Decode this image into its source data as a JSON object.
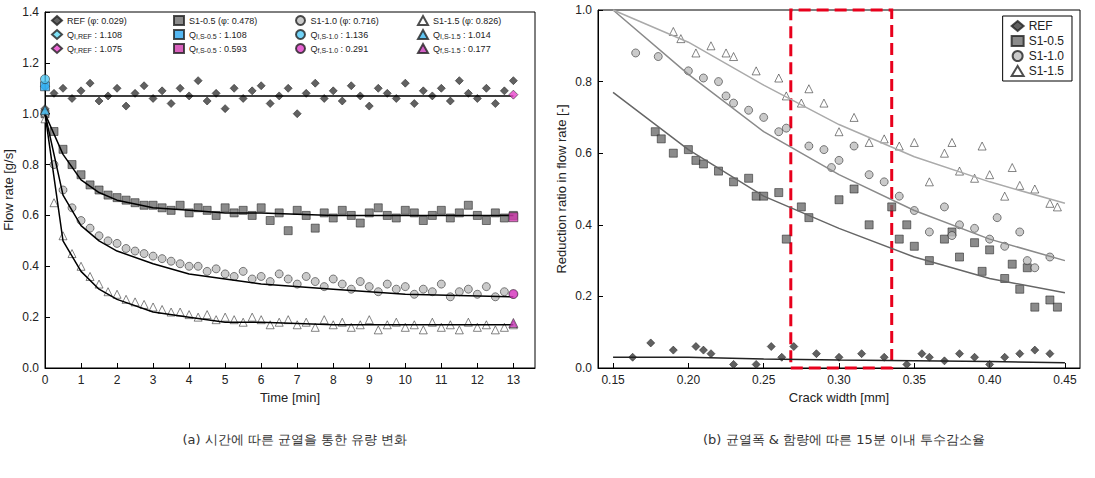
{
  "chart_data": [
    {
      "type": "scatter",
      "caption": "(a) 시간에 따른 균열을 통한 유량 변화",
      "x_label": "Time [min]",
      "y_label": "Flow rate [g/s]",
      "xlim": [
        0,
        13.6
      ],
      "xticks": [
        0,
        1,
        2,
        3,
        4,
        5,
        6,
        7,
        8,
        9,
        10,
        11,
        12,
        13
      ],
      "ylim": [
        0,
        1.4
      ],
      "yticks": [
        {
          "value": 0,
          "label": "0.0"
        },
        0.2,
        0.4,
        0.6,
        0.8,
        {
          "value": 1,
          "label": "1.0"
        },
        1.2,
        1.4
      ],
      "grid": false,
      "legend": "top",
      "x": [
        0,
        0.25,
        0.5,
        0.75,
        1,
        1.25,
        1.5,
        1.75,
        2,
        2.25,
        2.5,
        2.75,
        3,
        3.25,
        3.5,
        3.75,
        4,
        4.25,
        4.5,
        4.75,
        5,
        5.25,
        5.5,
        5.75,
        6,
        6.25,
        6.5,
        6.75,
        7,
        7.25,
        7.5,
        7.75,
        8,
        8.25,
        8.5,
        8.75,
        9,
        9.25,
        9.5,
        9.75,
        10,
        10.25,
        10.5,
        10.75,
        11,
        11.25,
        11.5,
        11.75,
        12,
        12.25,
        12.5,
        12.75,
        13
      ],
      "series": [
        {
          "name": "REF (φ: 0.029)",
          "color": "#3a3a3a",
          "marker": "diamond",
          "values": [
            1.02,
            1.08,
            1.1,
            1.06,
            1.09,
            1.12,
            1.05,
            1.07,
            1.1,
            1.03,
            1.08,
            1.11,
            1.06,
            1.09,
            1.04,
            1.1,
            1.07,
            1.13,
            1.05,
            1.08,
            1.02,
            1.1,
            1.06,
            1.09,
            1.11,
            1.04,
            1.07,
            1.1,
            1.0,
            1.08,
            1.12,
            1.06,
            1.09,
            1.05,
            1.11,
            1.07,
            1.03,
            1.1,
            1.08,
            1.06,
            1.12,
            1.04,
            1.09,
            1.07,
            1.1,
            1.05,
            1.13,
            1.08,
            1.06,
            1.1,
            1.04,
            1.09,
            1.13
          ]
        },
        {
          "name": "S1-0.5 (φ: 0.478)",
          "color": "#6e6e6e",
          "marker": "square",
          "values": [
            1.0,
            0.93,
            0.86,
            0.8,
            0.76,
            0.72,
            0.7,
            0.68,
            0.67,
            0.66,
            0.65,
            0.64,
            0.64,
            0.63,
            0.62,
            0.64,
            0.61,
            0.63,
            0.62,
            0.6,
            0.63,
            0.61,
            0.62,
            0.6,
            0.63,
            0.58,
            0.61,
            0.54,
            0.62,
            0.6,
            0.55,
            0.61,
            0.59,
            0.62,
            0.6,
            0.57,
            0.61,
            0.63,
            0.6,
            0.59,
            0.62,
            0.61,
            0.58,
            0.6,
            0.62,
            0.59,
            0.61,
            0.64,
            0.6,
            0.58,
            0.61,
            0.59,
            0.6
          ]
        },
        {
          "name": "S1-1.0 (φ: 0.716)",
          "color": "#bdbdbd",
          "marker": "circle",
          "values": [
            1.0,
            0.8,
            0.7,
            0.63,
            0.58,
            0.55,
            0.52,
            0.5,
            0.49,
            0.47,
            0.46,
            0.45,
            0.44,
            0.43,
            0.42,
            0.41,
            0.4,
            0.4,
            0.38,
            0.39,
            0.37,
            0.36,
            0.38,
            0.35,
            0.36,
            0.34,
            0.37,
            0.35,
            0.33,
            0.36,
            0.34,
            0.32,
            0.35,
            0.33,
            0.31,
            0.34,
            0.32,
            0.3,
            0.33,
            0.31,
            0.32,
            0.29,
            0.31,
            0.3,
            0.33,
            0.28,
            0.3,
            0.31,
            0.29,
            0.32,
            0.28,
            0.3,
            0.29
          ]
        },
        {
          "name": "S1-1.5 (φ: 0.826)",
          "color": "#ffffff",
          "marker": "triangle",
          "values": [
            0.98,
            0.65,
            0.52,
            0.45,
            0.4,
            0.36,
            0.33,
            0.3,
            0.29,
            0.27,
            0.26,
            0.25,
            0.24,
            0.23,
            0.22,
            0.22,
            0.21,
            0.2,
            0.21,
            0.19,
            0.2,
            0.19,
            0.18,
            0.2,
            0.19,
            0.17,
            0.18,
            0.19,
            0.17,
            0.18,
            0.16,
            0.19,
            0.17,
            0.18,
            0.16,
            0.17,
            0.19,
            0.15,
            0.17,
            0.18,
            0.16,
            0.17,
            0.15,
            0.18,
            0.16,
            0.17,
            0.15,
            0.18,
            0.16,
            0.17,
            0.15,
            0.16,
            0.17
          ]
        },
        {
          "name": "QI,REF : 1.108",
          "color": "#5fd8f2",
          "marker": "diamond",
          "x": [
            0
          ],
          "values": [
            1.108
          ]
        },
        {
          "name": "QI,S-0.5 : 1.108",
          "color": "#2aa6f0",
          "marker": "square",
          "x": [
            0
          ],
          "values": [
            1.108
          ]
        },
        {
          "name": "QI,S-1.0 : 1.136",
          "color": "#4fc8f5",
          "marker": "circle",
          "x": [
            0
          ],
          "values": [
            1.136
          ]
        },
        {
          "name": "QI,S-1.5 : 1.014",
          "color": "#3bb8f0",
          "marker": "triangle",
          "x": [
            0
          ],
          "values": [
            1.014
          ]
        },
        {
          "name": "Qf,REF : 1.075",
          "color": "#e845cc",
          "marker": "diamond",
          "x": [
            13
          ],
          "values": [
            1.075
          ]
        },
        {
          "name": "Qf,S-0.5 : 0.593",
          "color": "#d03aac",
          "marker": "square",
          "x": [
            13
          ],
          "values": [
            0.593
          ]
        },
        {
          "name": "Qf,S-1.0 : 0.291",
          "color": "#e03cc8",
          "marker": "circle",
          "x": [
            13
          ],
          "values": [
            0.291
          ]
        },
        {
          "name": "Qf,S-1.5 : 0.177",
          "color": "#c838b8",
          "marker": "triangle",
          "x": [
            13
          ],
          "values": [
            0.177
          ]
        },
        {
          "type": "line",
          "color": "#000000",
          "x": [
            0,
            0.5,
            1,
            1.5,
            2,
            3,
            4,
            5,
            6,
            8,
            10,
            13
          ],
          "values": [
            1.07,
            1.07,
            1.07,
            1.07,
            1.07,
            1.07,
            1.07,
            1.07,
            1.07,
            1.07,
            1.07,
            1.07
          ]
        },
        {
          "type": "line",
          "color": "#000000",
          "x": [
            0,
            0.5,
            1,
            1.5,
            2,
            3,
            4,
            5,
            6,
            8,
            10,
            13
          ],
          "values": [
            1.0,
            0.84,
            0.74,
            0.69,
            0.66,
            0.63,
            0.62,
            0.61,
            0.61,
            0.6,
            0.6,
            0.6
          ]
        },
        {
          "type": "line",
          "color": "#000000",
          "x": [
            0,
            0.5,
            1,
            1.5,
            2,
            3,
            4,
            5,
            6,
            8,
            10,
            13
          ],
          "values": [
            1.0,
            0.68,
            0.56,
            0.5,
            0.46,
            0.41,
            0.37,
            0.35,
            0.33,
            0.31,
            0.29,
            0.28
          ]
        },
        {
          "type": "line",
          "color": "#000000",
          "x": [
            0,
            0.5,
            1,
            1.5,
            2,
            3,
            4,
            5,
            6,
            8,
            10,
            13
          ],
          "values": [
            1.0,
            0.5,
            0.38,
            0.31,
            0.27,
            0.22,
            0.2,
            0.18,
            0.18,
            0.17,
            0.17,
            0.17
          ]
        }
      ]
    },
    {
      "type": "scatter",
      "caption": "(b) 균열폭 & 함량에 따른 15분 이내 투수감소율",
      "x_label": "Crack width [mm]",
      "y_label": "Reduction ratio in flow rate [-]",
      "xlim": [
        0.14,
        0.46
      ],
      "xticks": [
        0.15,
        {
          "value": 0.2,
          "label": "0.20"
        },
        0.25,
        {
          "value": 0.3,
          "label": "0.30"
        },
        0.35,
        {
          "value": 0.4,
          "label": "0.40"
        },
        0.45
      ],
      "ylim": [
        0,
        1
      ],
      "yticks": [
        {
          "value": 0,
          "label": "0.0"
        },
        0.2,
        0.4,
        0.6,
        0.8,
        {
          "value": 1,
          "label": "1.0"
        }
      ],
      "grid": false,
      "legend": "upper right",
      "highlight_range": [
        0.268,
        0.335
      ],
      "series": [
        {
          "name": "REF",
          "color": "#3a3a3a",
          "marker": "diamond",
          "x": [
            0.163,
            0.175,
            0.19,
            0.205,
            0.21,
            0.215,
            0.23,
            0.245,
            0.255,
            0.262,
            0.27,
            0.285,
            0.3,
            0.315,
            0.33,
            0.345,
            0.355,
            0.36,
            0.37,
            0.38,
            0.39,
            0.4,
            0.41,
            0.42,
            0.43,
            0.44
          ],
          "values": [
            0.03,
            0.07,
            0.05,
            0.06,
            0.05,
            0.04,
            0.01,
            0.01,
            0.06,
            0.03,
            0.06,
            0.04,
            0.03,
            0.04,
            0.03,
            0.01,
            0.04,
            0.03,
            0.02,
            0.04,
            0.03,
            0.01,
            0.03,
            0.04,
            0.05,
            0.04
          ]
        },
        {
          "name": "S1-0.5",
          "color": "#6e6e6e",
          "marker": "square",
          "x": [
            0.178,
            0.182,
            0.19,
            0.2,
            0.205,
            0.21,
            0.22,
            0.23,
            0.24,
            0.245,
            0.25,
            0.26,
            0.265,
            0.275,
            0.28,
            0.3,
            0.31,
            0.32,
            0.335,
            0.34,
            0.345,
            0.35,
            0.36,
            0.37,
            0.375,
            0.38,
            0.39,
            0.395,
            0.4,
            0.41,
            0.415,
            0.42,
            0.425,
            0.43,
            0.44,
            0.445
          ],
          "values": [
            0.66,
            0.64,
            0.6,
            0.61,
            0.58,
            0.57,
            0.55,
            0.52,
            0.53,
            0.48,
            0.48,
            0.49,
            0.36,
            0.45,
            0.42,
            0.47,
            0.5,
            0.4,
            0.45,
            0.36,
            0.4,
            0.34,
            0.3,
            0.36,
            0.38,
            0.31,
            0.35,
            0.27,
            0.33,
            0.25,
            0.29,
            0.22,
            0.28,
            0.17,
            0.19,
            0.17
          ]
        },
        {
          "name": "S1-1.0",
          "color": "#bdbdbd",
          "marker": "circle",
          "x": [
            0.165,
            0.18,
            0.2,
            0.21,
            0.22,
            0.225,
            0.23,
            0.24,
            0.25,
            0.26,
            0.265,
            0.28,
            0.29,
            0.295,
            0.3,
            0.31,
            0.32,
            0.33,
            0.34,
            0.35,
            0.36,
            0.37,
            0.375,
            0.38,
            0.39,
            0.4,
            0.405,
            0.41,
            0.42,
            0.425,
            0.43,
            0.44
          ],
          "values": [
            0.88,
            0.87,
            0.83,
            0.81,
            0.8,
            0.76,
            0.74,
            0.72,
            0.7,
            0.66,
            0.67,
            0.62,
            0.61,
            0.56,
            0.58,
            0.62,
            0.54,
            0.52,
            0.48,
            0.44,
            0.38,
            0.45,
            0.37,
            0.4,
            0.39,
            0.36,
            0.42,
            0.34,
            0.38,
            0.3,
            0.28,
            0.31
          ]
        },
        {
          "name": "S1-1.5",
          "color": "#ffffff",
          "marker": "triangle",
          "x": [
            0.19,
            0.195,
            0.205,
            0.215,
            0.225,
            0.23,
            0.245,
            0.26,
            0.265,
            0.275,
            0.28,
            0.29,
            0.3,
            0.31,
            0.32,
            0.33,
            0.34,
            0.35,
            0.36,
            0.37,
            0.375,
            0.38,
            0.39,
            0.395,
            0.4,
            0.41,
            0.415,
            0.42,
            0.43,
            0.44,
            0.445
          ],
          "values": [
            0.94,
            0.92,
            0.88,
            0.9,
            0.88,
            0.87,
            0.83,
            0.81,
            0.76,
            0.74,
            0.78,
            0.74,
            0.66,
            0.7,
            0.63,
            0.64,
            0.62,
            0.63,
            0.52,
            0.6,
            0.63,
            0.55,
            0.53,
            0.62,
            0.54,
            0.48,
            0.56,
            0.51,
            0.5,
            0.46,
            0.45
          ]
        },
        {
          "type": "line",
          "color": "#222222",
          "x": [
            0.15,
            0.2,
            0.25,
            0.3,
            0.35,
            0.4,
            0.45
          ],
          "values": [
            0.03,
            0.03,
            0.025,
            0.022,
            0.02,
            0.018,
            0.015
          ]
        },
        {
          "type": "line",
          "color": "#666666",
          "x": [
            0.15,
            0.2,
            0.25,
            0.3,
            0.35,
            0.4,
            0.45
          ],
          "values": [
            0.77,
            0.61,
            0.48,
            0.39,
            0.31,
            0.25,
            0.21
          ]
        },
        {
          "type": "line",
          "color": "#8a8a8a",
          "x": [
            0.15,
            0.2,
            0.25,
            0.3,
            0.35,
            0.4,
            0.45
          ],
          "values": [
            1.0,
            0.82,
            0.66,
            0.54,
            0.44,
            0.36,
            0.3
          ]
        },
        {
          "type": "line",
          "color": "#aaaaaa",
          "x": [
            0.15,
            0.2,
            0.25,
            0.3,
            0.35,
            0.4,
            0.45
          ],
          "values": [
            1.0,
            0.91,
            0.79,
            0.68,
            0.59,
            0.52,
            0.46
          ]
        }
      ]
    }
  ]
}
